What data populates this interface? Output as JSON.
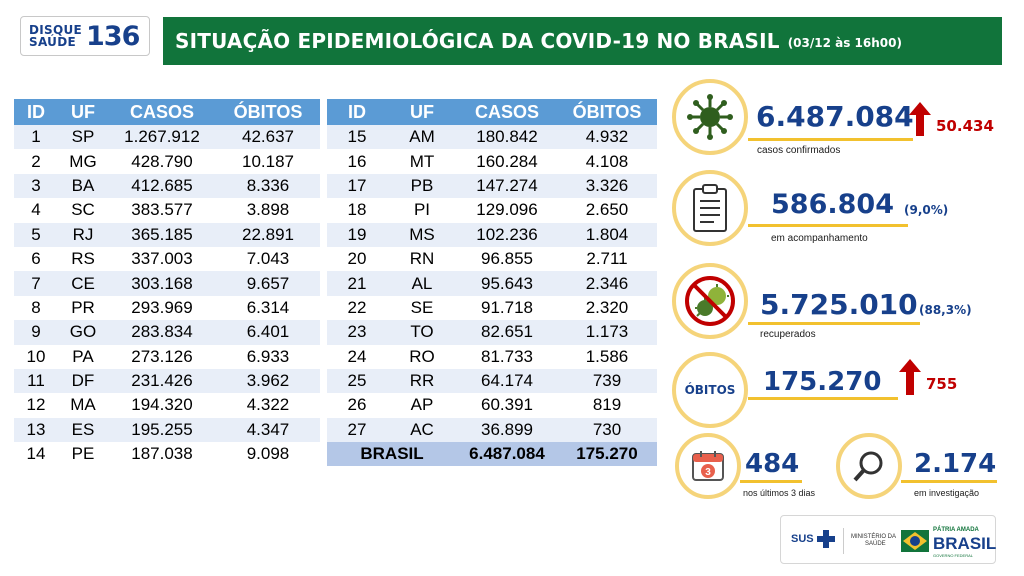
{
  "header": {
    "logo_line1": "DISQUE",
    "logo_line2": "SAÚDE",
    "logo_number": "136",
    "title": "SITUAÇÃO EPIDEMIOLÓGICA DA COVID-19 NO BRASIL",
    "date": "(03/12 às 16h00)"
  },
  "table": {
    "columns": [
      "ID",
      "UF",
      "CASOS",
      "ÓBITOS"
    ],
    "left_rows": [
      {
        "id": "1",
        "uf": "SP",
        "casos": "1.267.912",
        "obitos": "42.637"
      },
      {
        "id": "2",
        "uf": "MG",
        "casos": "428.790",
        "obitos": "10.187"
      },
      {
        "id": "3",
        "uf": "BA",
        "casos": "412.685",
        "obitos": "8.336"
      },
      {
        "id": "4",
        "uf": "SC",
        "casos": "383.577",
        "obitos": "3.898"
      },
      {
        "id": "5",
        "uf": "RJ",
        "casos": "365.185",
        "obitos": "22.891"
      },
      {
        "id": "6",
        "uf": "RS",
        "casos": "337.003",
        "obitos": "7.043"
      },
      {
        "id": "7",
        "uf": "CE",
        "casos": "303.168",
        "obitos": "9.657"
      },
      {
        "id": "8",
        "uf": "PR",
        "casos": "293.969",
        "obitos": "6.314"
      },
      {
        "id": "9",
        "uf": "GO",
        "casos": "283.834",
        "obitos": "6.401"
      },
      {
        "id": "10",
        "uf": "PA",
        "casos": "273.126",
        "obitos": "6.933"
      },
      {
        "id": "11",
        "uf": "DF",
        "casos": "231.426",
        "obitos": "3.962"
      },
      {
        "id": "12",
        "uf": "MA",
        "casos": "194.320",
        "obitos": "4.322"
      },
      {
        "id": "13",
        "uf": "ES",
        "casos": "195.255",
        "obitos": "4.347"
      },
      {
        "id": "14",
        "uf": "PE",
        "casos": "187.038",
        "obitos": "9.098"
      }
    ],
    "right_rows": [
      {
        "id": "15",
        "uf": "AM",
        "casos": "180.842",
        "obitos": "4.932"
      },
      {
        "id": "16",
        "uf": "MT",
        "casos": "160.284",
        "obitos": "4.108"
      },
      {
        "id": "17",
        "uf": "PB",
        "casos": "147.274",
        "obitos": "3.326"
      },
      {
        "id": "18",
        "uf": "PI",
        "casos": "129.096",
        "obitos": "2.650"
      },
      {
        "id": "19",
        "uf": "MS",
        "casos": "102.236",
        "obitos": "1.804"
      },
      {
        "id": "20",
        "uf": "RN",
        "casos": "96.855",
        "obitos": "2.711"
      },
      {
        "id": "21",
        "uf": "AL",
        "casos": "95.643",
        "obitos": "2.346"
      },
      {
        "id": "22",
        "uf": "SE",
        "casos": "91.718",
        "obitos": "2.320"
      },
      {
        "id": "23",
        "uf": "TO",
        "casos": "82.651",
        "obitos": "1.173"
      },
      {
        "id": "24",
        "uf": "RO",
        "casos": "81.733",
        "obitos": "1.586"
      },
      {
        "id": "25",
        "uf": "RR",
        "casos": "64.174",
        "obitos": "739"
      },
      {
        "id": "26",
        "uf": "AP",
        "casos": "60.391",
        "obitos": "819"
      },
      {
        "id": "27",
        "uf": "AC",
        "casos": "36.899",
        "obitos": "730"
      }
    ],
    "total": {
      "label": "BRASIL",
      "casos": "6.487.084",
      "obitos": "175.270"
    }
  },
  "stats": {
    "confirmed": {
      "value": "6.487.084",
      "increase": "50.434",
      "label": "casos confirmados",
      "icon": "virus-icon"
    },
    "monitoring": {
      "value": "586.804",
      "percent": "(9,0%)",
      "label": "em acompanhamento",
      "icon": "clipboard-icon"
    },
    "recovered": {
      "value": "5.725.010",
      "percent": "(88,3%)",
      "label": "recuperados",
      "icon": "no-virus-icon"
    },
    "deaths": {
      "badge": "ÓBITOS",
      "value": "175.270",
      "increase": "755"
    },
    "last3days": {
      "value": "484",
      "label": "nos últimos 3 dias",
      "icon": "calendar-icon",
      "calendar_number": "3"
    },
    "investigation": {
      "value": "2.174",
      "label": "em investigação",
      "icon": "magnifier-icon"
    }
  },
  "footer": {
    "sus": "SUS",
    "ministry_line1": "MINISTÉRIO DA",
    "ministry_line2": "SAÚDE",
    "patria": "PÁTRIA AMADA",
    "brasil": "BRASIL",
    "gov": "GOVERNO FEDERAL"
  },
  "colors": {
    "title_bar": "#11743b",
    "table_header": "#5b9bd5",
    "table_stripe": "#e8eef8",
    "total_row": "#b4c7e7",
    "accent_blue": "#17408b",
    "accent_yellow": "#f2c12e",
    "alert_red": "#c00000"
  }
}
